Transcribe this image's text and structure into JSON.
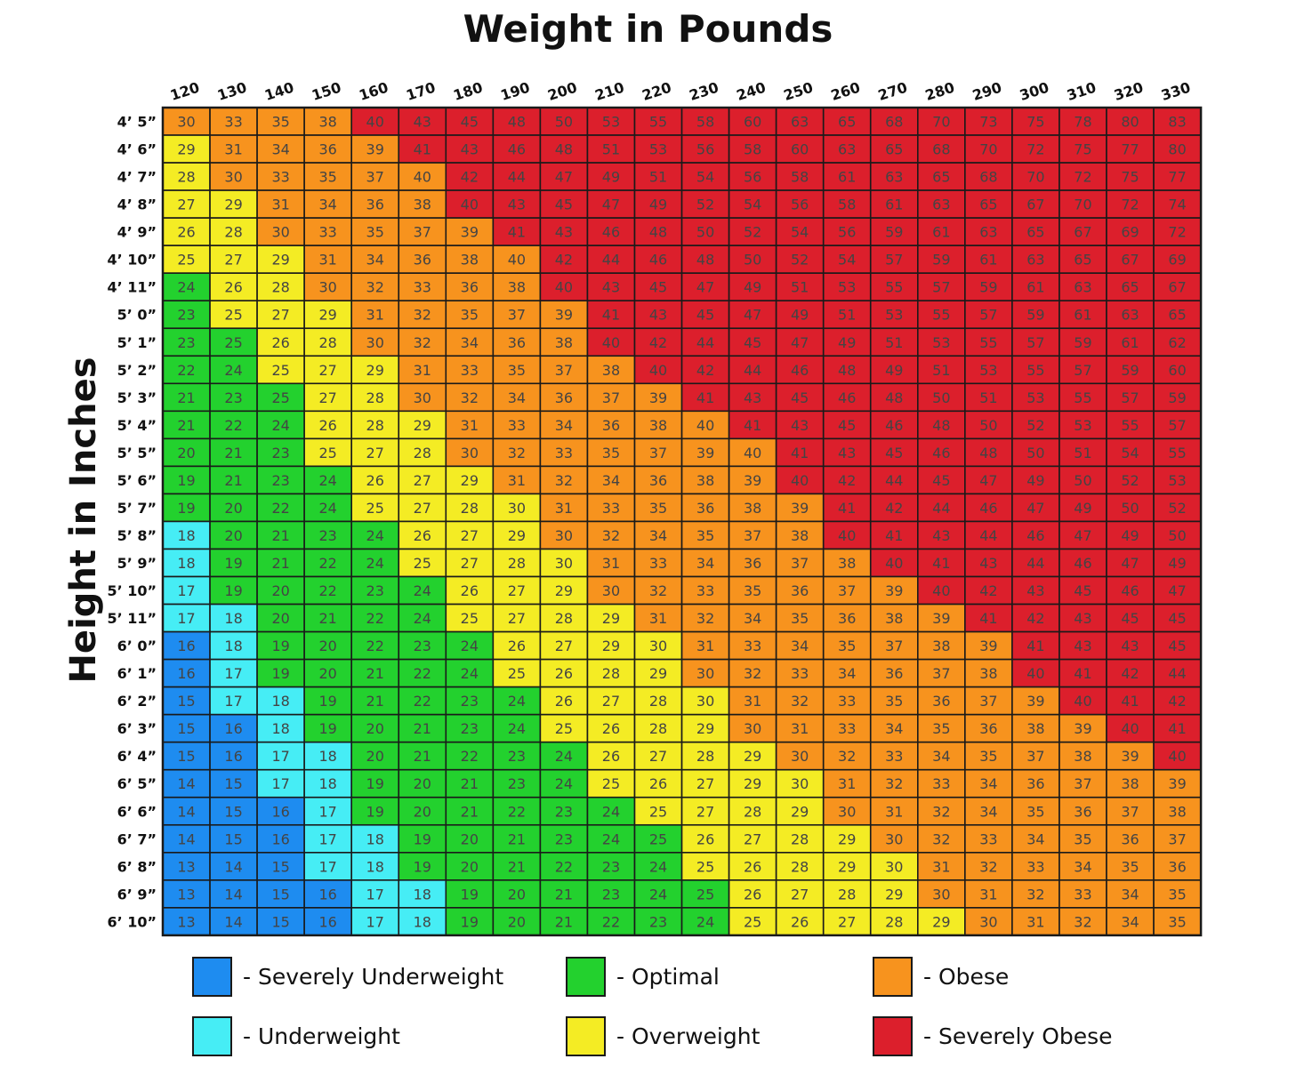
{
  "chart_data": {
    "type": "heatmap",
    "title": "Weight in Pounds",
    "ylabel": "Height in Inches",
    "x": [
      120,
      130,
      140,
      150,
      160,
      170,
      180,
      190,
      200,
      210,
      220,
      230,
      240,
      250,
      260,
      270,
      280,
      290,
      300,
      310,
      320,
      330
    ],
    "y": [
      "4’ 5”",
      "4’ 6”",
      "4’ 7”",
      "4’ 8”",
      "4’ 9”",
      "4’ 10”",
      "4’ 11”",
      "5’ 0”",
      "5’ 1”",
      "5’ 2”",
      "5’ 3”",
      "5’ 4”",
      "5’ 5”",
      "5’ 6”",
      "5’ 7”",
      "5’ 8”",
      "5’ 9”",
      "5’ 10”",
      "5’ 11”",
      "6’ 0”",
      "6’ 1”",
      "6’ 2”",
      "6’ 3”",
      "6’ 4”",
      "6’ 5”",
      "6’ 6”",
      "6’ 7”",
      "6’ 8”",
      "6’ 9”",
      "6’ 10”"
    ],
    "values": [
      [
        30,
        33,
        35,
        38,
        40,
        43,
        45,
        48,
        50,
        53,
        55,
        58,
        60,
        63,
        65,
        68,
        70,
        73,
        75,
        78,
        80,
        83
      ],
      [
        29,
        31,
        34,
        36,
        39,
        41,
        43,
        46,
        48,
        51,
        53,
        56,
        58,
        60,
        63,
        65,
        68,
        70,
        72,
        75,
        77,
        80
      ],
      [
        28,
        30,
        33,
        35,
        37,
        40,
        42,
        44,
        47,
        49,
        51,
        54,
        56,
        58,
        61,
        63,
        65,
        68,
        70,
        72,
        75,
        77
      ],
      [
        27,
        29,
        31,
        34,
        36,
        38,
        40,
        43,
        45,
        47,
        49,
        52,
        54,
        56,
        58,
        61,
        63,
        65,
        67,
        70,
        72,
        74
      ],
      [
        26,
        28,
        30,
        33,
        35,
        37,
        39,
        41,
        43,
        46,
        48,
        50,
        52,
        54,
        56,
        59,
        61,
        63,
        65,
        67,
        69,
        72
      ],
      [
        25,
        27,
        29,
        31,
        34,
        36,
        38,
        40,
        42,
        44,
        46,
        48,
        50,
        52,
        54,
        57,
        59,
        61,
        63,
        65,
        67,
        69
      ],
      [
        24,
        26,
        28,
        30,
        32,
        33,
        36,
        38,
        40,
        43,
        45,
        47,
        49,
        51,
        53,
        55,
        57,
        59,
        61,
        63,
        65,
        67
      ],
      [
        23,
        25,
        27,
        29,
        31,
        32,
        35,
        37,
        39,
        41,
        43,
        45,
        47,
        49,
        51,
        53,
        55,
        57,
        59,
        61,
        63,
        65
      ],
      [
        23,
        25,
        26,
        28,
        30,
        32,
        34,
        36,
        38,
        40,
        42,
        44,
        45,
        47,
        49,
        51,
        53,
        55,
        57,
        59,
        61,
        62
      ],
      [
        22,
        24,
        25,
        27,
        29,
        31,
        33,
        35,
        37,
        38,
        40,
        42,
        44,
        46,
        48,
        49,
        51,
        53,
        55,
        57,
        59,
        60
      ],
      [
        21,
        23,
        25,
        27,
        28,
        30,
        32,
        34,
        36,
        37,
        39,
        41,
        43,
        45,
        46,
        48,
        50,
        51,
        53,
        55,
        57,
        59
      ],
      [
        21,
        22,
        24,
        26,
        28,
        29,
        31,
        33,
        34,
        36,
        38,
        40,
        41,
        43,
        45,
        46,
        48,
        50,
        52,
        53,
        55,
        57
      ],
      [
        20,
        21,
        23,
        25,
        27,
        28,
        30,
        32,
        33,
        35,
        37,
        39,
        40,
        41,
        43,
        45,
        46,
        48,
        50,
        51,
        54,
        55
      ],
      [
        19,
        21,
        23,
        24,
        26,
        27,
        29,
        31,
        32,
        34,
        36,
        38,
        39,
        40,
        42,
        44,
        45,
        47,
        49,
        50,
        52,
        53
      ],
      [
        19,
        20,
        22,
        24,
        25,
        27,
        28,
        30,
        31,
        33,
        35,
        36,
        38,
        39,
        41,
        42,
        44,
        46,
        47,
        49,
        50,
        52
      ],
      [
        18,
        20,
        21,
        23,
        24,
        26,
        27,
        29,
        30,
        32,
        34,
        35,
        37,
        38,
        40,
        41,
        43,
        44,
        46,
        47,
        49,
        50
      ],
      [
        18,
        19,
        21,
        22,
        24,
        25,
        27,
        28,
        30,
        31,
        33,
        34,
        36,
        37,
        38,
        40,
        41,
        43,
        44,
        46,
        47,
        49
      ],
      [
        17,
        19,
        20,
        22,
        23,
        24,
        26,
        27,
        29,
        30,
        32,
        33,
        35,
        36,
        37,
        39,
        40,
        42,
        43,
        45,
        46,
        47
      ],
      [
        17,
        18,
        20,
        21,
        22,
        24,
        25,
        27,
        28,
        29,
        31,
        32,
        34,
        35,
        36,
        38,
        39,
        41,
        42,
        43,
        45,
        45
      ],
      [
        16,
        18,
        19,
        20,
        22,
        23,
        24,
        26,
        27,
        29,
        30,
        31,
        33,
        34,
        35,
        37,
        38,
        39,
        41,
        43,
        43,
        45
      ],
      [
        16,
        17,
        19,
        20,
        21,
        22,
        24,
        25,
        26,
        28,
        29,
        30,
        32,
        33,
        34,
        36,
        37,
        38,
        40,
        41,
        42,
        44
      ],
      [
        15,
        17,
        18,
        19,
        21,
        22,
        23,
        24,
        26,
        27,
        28,
        30,
        31,
        32,
        33,
        35,
        36,
        37,
        39,
        40,
        41,
        42
      ],
      [
        15,
        16,
        18,
        19,
        20,
        21,
        23,
        24,
        25,
        26,
        28,
        29,
        30,
        31,
        33,
        34,
        35,
        36,
        38,
        39,
        40,
        41
      ],
      [
        15,
        16,
        17,
        18,
        20,
        21,
        22,
        23,
        24,
        26,
        27,
        28,
        29,
        30,
        32,
        33,
        34,
        35,
        37,
        38,
        39,
        40
      ],
      [
        14,
        15,
        17,
        18,
        19,
        20,
        21,
        23,
        24,
        25,
        26,
        27,
        29,
        30,
        31,
        32,
        33,
        34,
        36,
        37,
        38,
        39
      ],
      [
        14,
        15,
        16,
        17,
        19,
        20,
        21,
        22,
        23,
        24,
        25,
        27,
        28,
        29,
        30,
        31,
        32,
        34,
        35,
        36,
        37,
        38
      ],
      [
        14,
        15,
        16,
        17,
        18,
        19,
        20,
        21,
        23,
        24,
        25,
        26,
        27,
        28,
        29,
        30,
        32,
        33,
        34,
        35,
        36,
        37
      ],
      [
        13,
        14,
        15,
        17,
        18,
        19,
        20,
        21,
        22,
        23,
        24,
        25,
        26,
        28,
        29,
        30,
        31,
        32,
        33,
        34,
        35,
        36
      ],
      [
        13,
        14,
        15,
        16,
        17,
        18,
        19,
        20,
        21,
        23,
        24,
        25,
        26,
        27,
        28,
        29,
        30,
        31,
        32,
        33,
        34,
        35
      ],
      [
        13,
        14,
        15,
        16,
        17,
        18,
        19,
        20,
        21,
        22,
        23,
        24,
        25,
        26,
        27,
        28,
        29,
        30,
        31,
        32,
        34,
        35
      ]
    ],
    "categories_by_cell": [
      "OOOOSSSSSSSSSSSSSSSSSS",
      "VOOOOSSSSSSSSSSSSSSSSS",
      "VOOOOOSSSSSSSSSSSSSSSS",
      "VVOOOOSSSSSSSSSSSSSSSS",
      "VVOOOOOSSSSSSSSSSSSSSS",
      "VVVOOOOOSSSSSSSSSSSSSS",
      "GVVOOOOOSSSSSSSSSSSSSS",
      "GVVVOOOOOSSSSSSSSSSSSS",
      "GGVVOOOOOSSSSSSSSSSSSS",
      "GGVVVOOOOOSSSSSSSSSSSS",
      "GGGVVOOOOOOSSSSSSSSSSS",
      "GGGVVVOOOOOOSSSSSSSSSS",
      "GGGVVVOOOOOOOSSSSSSSSS",
      "GGGGVVVOOOOOOSSSSSSSSS",
      "GGGGVVVVOOOOOOSSSSSSSS",
      "UGGGGVVVOOOOOOSSSSSSSS",
      "UGGGGVVVVOOOOOOSSSSSSS",
      "UGGGGGVVVOOOOOOOSSSSSS",
      "UUGGGGVVVVOOOOOOOSSSSS",
      "BUGGGGGVVVVOOOOOOOSSSS",
      "BUGGGGGVVVVOOOOOOOSSSS",
      "BUUGGGGGVVVVOOOOOOOSSS",
      "BBUGGGGGVVVVOOOOOOOOSS",
      "BBUUGGGGGVVVVOOOOOOOOS",
      "BBUUGGGGGVVVVVOOOOOOOO",
      "BBBUGGGGGGVVVVOOOOOOOO",
      "BBBUUGGGGGGVVVVOOOOOOO",
      "BBBUUGGGGGGVVVVVOOOOOO",
      "BBBBUUGGGGGGVVVVOOOOOO",
      "BBBBUUGGGGGGVVVVVOOOOO"
    ],
    "category_colors": {
      "B": "#1e8cf0",
      "U": "#46edf5",
      "G": "#23d12e",
      "V": "#f4ec24",
      "O": "#f7931e",
      "S": "#dc1f2c"
    },
    "legend": [
      {
        "key": "B",
        "label": "- Severely Underweight"
      },
      {
        "key": "G",
        "label": "- Optimal"
      },
      {
        "key": "O",
        "label": "- Obese"
      },
      {
        "key": "U",
        "label": "- Underweight"
      },
      {
        "key": "V",
        "label": "- Overweight"
      },
      {
        "key": "S",
        "label": "- Severely Obese"
      }
    ],
    "legend_placement": "bottom"
  }
}
